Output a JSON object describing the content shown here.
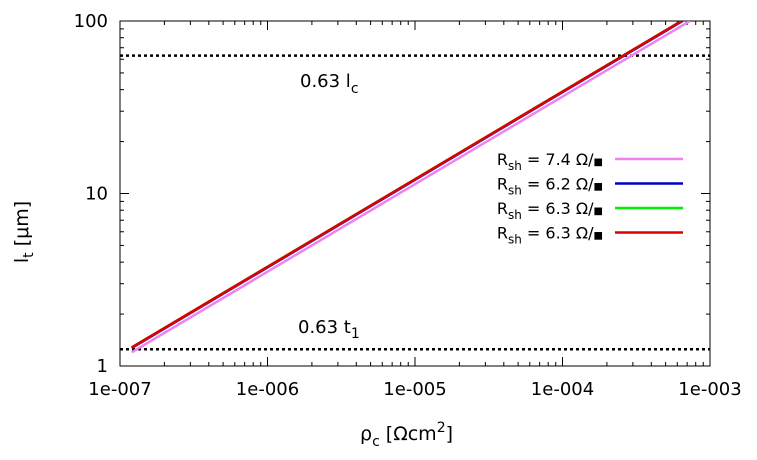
{
  "chart_data": {
    "type": "line",
    "xlabel_main": "ρ",
    "xlabel_sub": "c",
    "xlabel_units_pre": " [Ωcm",
    "xlabel_units_sup": "2",
    "xlabel_units_post": "]",
    "ylabel_main": "l",
    "ylabel_sub": "t",
    "ylabel_units": " [μm]",
    "xscale": "log",
    "yscale": "log",
    "xlim": [
      1e-07,
      0.001
    ],
    "ylim": [
      1,
      100
    ],
    "xticks": [
      {
        "value": 1e-07,
        "label": "1e-007"
      },
      {
        "value": 1e-06,
        "label": "1e-006"
      },
      {
        "value": 1e-05,
        "label": "1e-005"
      },
      {
        "value": 0.0001,
        "label": "1e-004"
      },
      {
        "value": 0.001,
        "label": "1e-003"
      }
    ],
    "yticks": [
      {
        "value": 1,
        "label": "1"
      },
      {
        "value": 10,
        "label": "10"
      },
      {
        "value": 100,
        "label": "100"
      }
    ],
    "grid": false,
    "legend_position": "right",
    "series": [
      {
        "name_main": "R",
        "name_sub": "sh",
        "name_rest": " = 7.4 Ω/",
        "name_square": "■",
        "color": "#ee82ee",
        "x": [
          1.2e-07,
          0.00073
        ],
        "y": [
          1.2,
          100
        ]
      },
      {
        "name_main": "R",
        "name_sub": "sh",
        "name_rest": " = 6.2 Ω/",
        "name_square": "■",
        "color": "#0000cc",
        "x": [
          1.2e-07,
          0.00065
        ],
        "y": [
          1.27,
          100
        ]
      },
      {
        "name_main": "R",
        "name_sub": "sh",
        "name_rest": " = 6.3 Ω/",
        "name_square": "■",
        "color": "#00ee00",
        "x": [
          1.2e-07,
          0.00064
        ],
        "y": [
          1.28,
          100
        ]
      },
      {
        "name_main": "R",
        "name_sub": "sh",
        "name_rest": " = 6.3 Ω/",
        "name_square": "■",
        "color": "#dd0000",
        "x": [
          1.2e-07,
          0.00064
        ],
        "y": [
          1.28,
          100
        ]
      }
    ],
    "reference_lines": [
      {
        "y": 63,
        "color": "#000000",
        "style": "dotted",
        "label_main": "0.63 l",
        "label_sub": "c"
      },
      {
        "y": 1.25,
        "color": "#000000",
        "style": "dotted",
        "label_main": "0.63 t",
        "label_sub": "1"
      }
    ]
  }
}
